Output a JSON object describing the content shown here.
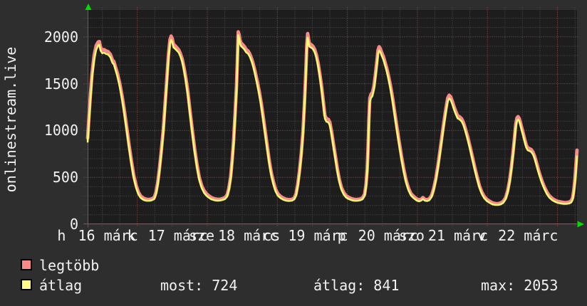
{
  "title": "onlinestream.live",
  "legend": {
    "series1_label": "legtöbb",
    "series2_label": "átlag"
  },
  "stats": {
    "most": "most: 724",
    "atlag": "átlag: 841",
    "max": "max: 2053"
  },
  "colors": {
    "background": "#2e2e2e",
    "plot_bg": "#1d1d1d",
    "grid_minor": "#4f4f4f",
    "grid_major": "#b04a4a",
    "axis_line": "#606060",
    "text": "#f2f2f2",
    "arrow_green": "#00dc00",
    "legtobb_pink": "#f98a8a",
    "atlag_yellow": "#f9f972"
  },
  "chart_data": {
    "type": "line",
    "title": "onlinestream.live",
    "xlabel": "",
    "ylabel": "",
    "grid": "on",
    "legend_position": "bottom-left",
    "yticks": [
      0,
      500,
      1000,
      1500,
      2000
    ],
    "ylim": [
      0,
      2287
    ],
    "x_unit": "hours since Monday 16 March 00:00",
    "xlim_hours": [
      7,
      174.72
    ],
    "x_minor_step_hours": 6,
    "x_major_step_hours": 24,
    "y_minor_step": 100,
    "y_major_step": 500,
    "x_day_letters": [
      "h",
      "k",
      "sze",
      "cs",
      "p",
      "szo",
      "v"
    ],
    "x_date_labels": [
      "16 márc",
      "17 márc",
      "18 márc",
      "19 márc",
      "20 márc",
      "21 márc",
      "22 márc"
    ],
    "series": [
      {
        "name": "legtöbb",
        "color": "#f98a8a",
        "width": 4.8
      },
      {
        "name": "átlag",
        "color": "#f9f972",
        "width": 2.6
      }
    ],
    "summary": {
      "most": 724,
      "atlag": 841,
      "max": 2053
    },
    "points_columns": [
      "hour",
      "átlag",
      "legtöbb"
    ],
    "points": [
      [
        7.0,
        880,
        920
      ],
      [
        7.4,
        1080,
        1125
      ],
      [
        7.9,
        1320,
        1370
      ],
      [
        8.5,
        1560,
        1610
      ],
      [
        9.2,
        1750,
        1800
      ],
      [
        9.9,
        1860,
        1905
      ],
      [
        10.6,
        1910,
        1945
      ],
      [
        11.0,
        1915,
        1950
      ],
      [
        11.4,
        1855,
        1890
      ],
      [
        12.0,
        1825,
        1858
      ],
      [
        12.6,
        1832,
        1864
      ],
      [
        13.3,
        1818,
        1850
      ],
      [
        14.0,
        1812,
        1843
      ],
      [
        14.8,
        1782,
        1813
      ],
      [
        15.5,
        1722,
        1753
      ],
      [
        16.0,
        1706,
        1738
      ],
      [
        16.6,
        1640,
        1672
      ],
      [
        17.2,
        1578,
        1612
      ],
      [
        18.0,
        1470,
        1505
      ],
      [
        18.8,
        1332,
        1368
      ],
      [
        19.6,
        1170,
        1206
      ],
      [
        20.4,
        990,
        1026
      ],
      [
        21.2,
        810,
        845
      ],
      [
        22.0,
        640,
        673
      ],
      [
        22.8,
        490,
        520
      ],
      [
        23.6,
        388,
        414
      ],
      [
        24.4,
        318,
        341
      ],
      [
        25.2,
        280,
        300
      ],
      [
        26.2,
        258,
        276
      ],
      [
        27.2,
        250,
        266
      ],
      [
        28.2,
        250,
        264
      ],
      [
        29.0,
        256,
        271
      ],
      [
        29.8,
        268,
        284
      ],
      [
        30.4,
        320,
        340
      ],
      [
        31.0,
        420,
        444
      ],
      [
        31.6,
        565,
        592
      ],
      [
        32.2,
        745,
        775
      ],
      [
        32.9,
        975,
        1010
      ],
      [
        33.5,
        1230,
        1268
      ],
      [
        34.1,
        1505,
        1545
      ],
      [
        34.7,
        1770,
        1812
      ],
      [
        35.2,
        1930,
        1972
      ],
      [
        35.6,
        1968,
        2008
      ],
      [
        36.0,
        1945,
        1982
      ],
      [
        36.4,
        1888,
        1922
      ],
      [
        37.0,
        1872,
        1904
      ],
      [
        37.6,
        1852,
        1883
      ],
      [
        38.2,
        1832,
        1862
      ],
      [
        38.8,
        1790,
        1821
      ],
      [
        39.4,
        1732,
        1763
      ],
      [
        40.0,
        1645,
        1678
      ],
      [
        40.7,
        1518,
        1552
      ],
      [
        41.4,
        1358,
        1394
      ],
      [
        42.1,
        1168,
        1205
      ],
      [
        42.9,
        960,
        996
      ],
      [
        43.7,
        762,
        796
      ],
      [
        44.5,
        595,
        626
      ],
      [
        45.3,
        465,
        493
      ],
      [
        46.1,
        385,
        410
      ],
      [
        46.9,
        334,
        357
      ],
      [
        47.7,
        304,
        325
      ],
      [
        48.5,
        284,
        304
      ],
      [
        49.4,
        266,
        284
      ],
      [
        50.4,
        256,
        272
      ],
      [
        51.4,
        251,
        266
      ],
      [
        52.4,
        253,
        267
      ],
      [
        53.3,
        259,
        274
      ],
      [
        54.1,
        270,
        286
      ],
      [
        54.8,
        295,
        313
      ],
      [
        55.4,
        365,
        386
      ],
      [
        56.0,
        485,
        510
      ],
      [
        56.5,
        648,
        676
      ],
      [
        57.0,
        858,
        890
      ],
      [
        57.5,
        1128,
        1166
      ],
      [
        58.0,
        1432,
        1474
      ],
      [
        58.3,
        1706,
        1752
      ],
      [
        58.6,
        2018,
        2053
      ],
      [
        58.9,
        1988,
        2026
      ],
      [
        59.2,
        1928,
        1964
      ],
      [
        59.6,
        1900,
        1934
      ],
      [
        60.1,
        1886,
        1918
      ],
      [
        60.7,
        1866,
        1897
      ],
      [
        61.3,
        1836,
        1866
      ],
      [
        62.0,
        1820,
        1849
      ],
      [
        62.6,
        1786,
        1815
      ],
      [
        63.2,
        1736,
        1765
      ],
      [
        63.8,
        1676,
        1706
      ],
      [
        64.4,
        1596,
        1627
      ],
      [
        65.1,
        1496,
        1529
      ],
      [
        65.8,
        1386,
        1420
      ],
      [
        66.5,
        1256,
        1291
      ],
      [
        67.2,
        1106,
        1141
      ],
      [
        67.9,
        946,
        980
      ],
      [
        68.6,
        786,
        819
      ],
      [
        69.3,
        636,
        667
      ],
      [
        70.0,
        510,
        539
      ],
      [
        70.7,
        420,
        447
      ],
      [
        71.4,
        350,
        374
      ],
      [
        72.2,
        304,
        325
      ],
      [
        73.1,
        278,
        297
      ],
      [
        74.1,
        260,
        277
      ],
      [
        75.1,
        251,
        266
      ],
      [
        76.1,
        248,
        262
      ],
      [
        77.1,
        252,
        266
      ],
      [
        77.8,
        266,
        281
      ],
      [
        78.4,
        304,
        322
      ],
      [
        79.0,
        404,
        427
      ],
      [
        79.6,
        545,
        571
      ],
      [
        80.2,
        725,
        756
      ],
      [
        80.8,
        955,
        992
      ],
      [
        81.3,
        1255,
        1297
      ],
      [
        81.8,
        1605,
        1652
      ],
      [
        82.1,
        1875,
        1922
      ],
      [
        82.4,
        1990,
        2035
      ],
      [
        82.7,
        1940,
        1976
      ],
      [
        83.0,
        1896,
        1929
      ],
      [
        83.6,
        1886,
        1917
      ],
      [
        84.2,
        1870,
        1900
      ],
      [
        84.8,
        1836,
        1866
      ],
      [
        85.4,
        1776,
        1806
      ],
      [
        86.0,
        1686,
        1717
      ],
      [
        86.6,
        1566,
        1599
      ],
      [
        87.2,
        1426,
        1461
      ],
      [
        87.8,
        1266,
        1302
      ],
      [
        88.3,
        1126,
        1162
      ],
      [
        88.8,
        1096,
        1130
      ],
      [
        89.5,
        1086,
        1118
      ],
      [
        90.0,
        1056,
        1088
      ],
      [
        90.6,
        956,
        988
      ],
      [
        91.2,
        836,
        868
      ],
      [
        91.9,
        696,
        727
      ],
      [
        92.6,
        556,
        585
      ],
      [
        93.3,
        446,
        472
      ],
      [
        94.0,
        366,
        390
      ],
      [
        94.8,
        314,
        335
      ],
      [
        95.6,
        284,
        303
      ],
      [
        96.4,
        270,
        288
      ],
      [
        97.4,
        257,
        273
      ],
      [
        98.4,
        250,
        265
      ],
      [
        99.4,
        250,
        264
      ],
      [
        100.4,
        255,
        269
      ],
      [
        101.2,
        266,
        281
      ],
      [
        101.9,
        302,
        319
      ],
      [
        102.4,
        400,
        423
      ],
      [
        102.8,
        565,
        592
      ],
      [
        103.1,
        790,
        822
      ],
      [
        103.4,
        1095,
        1133
      ],
      [
        103.7,
        1305,
        1345
      ],
      [
        104.1,
        1348,
        1388
      ],
      [
        104.6,
        1368,
        1406
      ],
      [
        105.1,
        1438,
        1475
      ],
      [
        105.6,
        1558,
        1596
      ],
      [
        106.1,
        1698,
        1738
      ],
      [
        106.5,
        1818,
        1858
      ],
      [
        106.9,
        1855,
        1894
      ],
      [
        107.3,
        1838,
        1874
      ],
      [
        107.8,
        1798,
        1832
      ],
      [
        108.4,
        1752,
        1786
      ],
      [
        108.9,
        1698,
        1732
      ],
      [
        109.5,
        1632,
        1666
      ],
      [
        110.1,
        1548,
        1583
      ],
      [
        110.8,
        1442,
        1478
      ],
      [
        111.5,
        1312,
        1349
      ],
      [
        112.2,
        1162,
        1199
      ],
      [
        113.0,
        998,
        1034
      ],
      [
        113.8,
        838,
        872
      ],
      [
        114.6,
        682,
        714
      ],
      [
        115.4,
        546,
        575
      ],
      [
        116.2,
        436,
        462
      ],
      [
        117.0,
        358,
        381
      ],
      [
        117.8,
        306,
        326
      ],
      [
        118.7,
        278,
        297
      ],
      [
        119.7,
        254,
        271
      ],
      [
        120.6,
        244,
        260
      ],
      [
        121.3,
        252,
        267
      ],
      [
        121.9,
        268,
        284
      ],
      [
        122.5,
        252,
        267
      ],
      [
        123.3,
        247,
        261
      ],
      [
        124.1,
        256,
        271
      ],
      [
        124.9,
        292,
        309
      ],
      [
        125.6,
        362,
        382
      ],
      [
        126.3,
        462,
        485
      ],
      [
        127.0,
        592,
        618
      ],
      [
        127.7,
        742,
        770
      ],
      [
        128.4,
        902,
        933
      ],
      [
        129.1,
        1062,
        1095
      ],
      [
        129.8,
        1202,
        1236
      ],
      [
        130.4,
        1312,
        1347
      ],
      [
        130.9,
        1342,
        1377
      ],
      [
        131.4,
        1328,
        1361
      ],
      [
        132.0,
        1280,
        1312
      ],
      [
        132.6,
        1220,
        1251
      ],
      [
        133.2,
        1170,
        1200
      ],
      [
        133.8,
        1130,
        1159
      ],
      [
        134.5,
        1118,
        1146
      ],
      [
        135.2,
        1096,
        1124
      ],
      [
        135.8,
        1056,
        1084
      ],
      [
        136.5,
        986,
        1014
      ],
      [
        137.3,
        896,
        924
      ],
      [
        138.1,
        796,
        823
      ],
      [
        138.9,
        686,
        712
      ],
      [
        139.7,
        576,
        601
      ],
      [
        140.5,
        476,
        500
      ],
      [
        141.3,
        386,
        408
      ],
      [
        142.1,
        322,
        342
      ],
      [
        142.9,
        277,
        296
      ],
      [
        143.8,
        247,
        265
      ],
      [
        144.7,
        229,
        246
      ],
      [
        145.7,
        212,
        228
      ],
      [
        146.7,
        205,
        220
      ],
      [
        147.7,
        205,
        219
      ],
      [
        148.6,
        212,
        227
      ],
      [
        149.4,
        227,
        243
      ],
      [
        150.2,
        263,
        280
      ],
      [
        150.9,
        333,
        352
      ],
      [
        151.6,
        443,
        464
      ],
      [
        152.2,
        583,
        606
      ],
      [
        152.8,
        743,
        768
      ],
      [
        153.3,
        903,
        930
      ],
      [
        153.7,
        1033,
        1062
      ],
      [
        154.1,
        1103,
        1133
      ],
      [
        154.5,
        1118,
        1148
      ],
      [
        154.9,
        1102,
        1131
      ],
      [
        155.3,
        1058,
        1087
      ],
      [
        155.8,
        998,
        1027
      ],
      [
        156.3,
        938,
        966
      ],
      [
        156.8,
        878,
        905
      ],
      [
        157.3,
        818,
        845
      ],
      [
        157.8,
        790,
        816
      ],
      [
        158.4,
        782,
        807
      ],
      [
        159.0,
        772,
        797
      ],
      [
        159.6,
        746,
        771
      ],
      [
        160.2,
        698,
        723
      ],
      [
        160.8,
        634,
        659
      ],
      [
        161.4,
        564,
        589
      ],
      [
        162.1,
        494,
        518
      ],
      [
        162.8,
        430,
        453
      ],
      [
        163.6,
        370,
        392
      ],
      [
        164.4,
        320,
        341
      ],
      [
        165.2,
        285,
        305
      ],
      [
        166.2,
        257,
        275
      ],
      [
        167.2,
        239,
        256
      ],
      [
        168.2,
        227,
        243
      ],
      [
        169.2,
        221,
        236
      ],
      [
        170.2,
        217,
        232
      ],
      [
        171.2,
        217,
        231
      ],
      [
        172.0,
        221,
        236
      ],
      [
        172.7,
        232,
        249
      ],
      [
        173.2,
        261,
        282
      ],
      [
        173.6,
        331,
        360
      ],
      [
        174.0,
        441,
        485
      ],
      [
        174.3,
        551,
        610
      ],
      [
        174.55,
        650,
        722
      ],
      [
        174.72,
        724,
        790
      ]
    ]
  }
}
